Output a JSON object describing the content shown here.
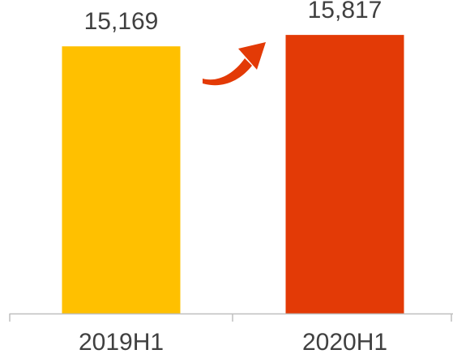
{
  "chart_data": {
    "type": "bar",
    "categories": [
      "2019H1",
      "2020H1"
    ],
    "values": [
      15169,
      15817
    ],
    "data_labels": [
      "15,169",
      "15,817"
    ],
    "bar_colors": [
      "#FFC000",
      "#E33A06"
    ],
    "arrow_color": "#E33A06",
    "arrow_icon": "curved-up-arrow-icon",
    "axis_color": "#BFBFBF",
    "text_color": "#404040",
    "title": "",
    "xlabel": "",
    "ylabel": "",
    "ylim": [
      0,
      17800
    ],
    "grid": false,
    "legend": "none"
  }
}
